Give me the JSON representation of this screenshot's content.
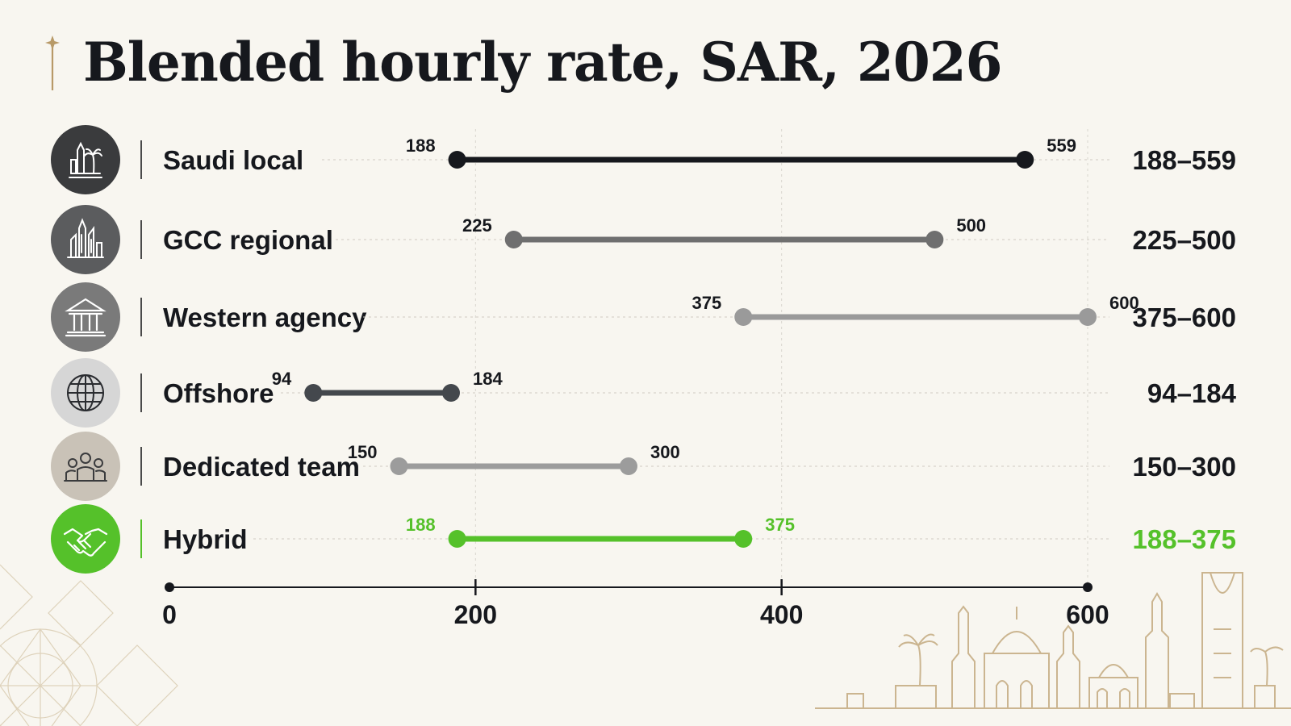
{
  "title": "Blended hourly rate, SAR, 2026",
  "chart_data": {
    "type": "range",
    "title": "Blended hourly rate, SAR, 2026",
    "xlim": [
      0,
      600
    ],
    "xticks": [
      "0",
      "200",
      "400",
      "600"
    ],
    "grid": true,
    "categories": [
      {
        "name": "Saudi local",
        "icon": "city-palm-icon",
        "min": 188,
        "max": 559,
        "min_label": "188",
        "max_label": "559",
        "range_label": "188–559",
        "color": "#16181d",
        "icon_bg": "#3a3b3d",
        "highlight": false
      },
      {
        "name": "GCC regional",
        "icon": "skyline-icon",
        "min": 225,
        "max": 500,
        "min_label": "225",
        "max_label": "500",
        "range_label": "225–500",
        "color": "#6f6f6f",
        "icon_bg": "#5b5c5e",
        "highlight": false
      },
      {
        "name": "Western agency",
        "icon": "institution-icon",
        "min": 375,
        "max": 600,
        "min_label": "375",
        "max_label": "600",
        "range_label": "375–600",
        "color": "#9a9a9a",
        "icon_bg": "#7a7a7a",
        "highlight": false
      },
      {
        "name": "Offshore",
        "icon": "globe-icon",
        "min": 94,
        "max": 184,
        "min_label": "94",
        "max_label": "184",
        "range_label": "94–184",
        "color": "#44484d",
        "icon_bg": "#d6d6d6",
        "highlight": false
      },
      {
        "name": "Dedicated team",
        "icon": "team-icon",
        "min": 150,
        "max": 300,
        "min_label": "150",
        "max_label": "300",
        "range_label": "150–300",
        "color": "#9c9c9c",
        "icon_bg": "#c9c2b7",
        "highlight": false
      },
      {
        "name": "Hybrid",
        "icon": "handshake-icon",
        "min": 188,
        "max": 375,
        "min_label": "188",
        "max_label": "375",
        "range_label": "188–375",
        "color": "#55c12a",
        "icon_bg": "#55c12a",
        "highlight": true
      }
    ]
  },
  "colors": {
    "background": "#f8f6f0",
    "text": "#16181d",
    "accent_green": "#55c12a",
    "gold": "#b89a68"
  }
}
